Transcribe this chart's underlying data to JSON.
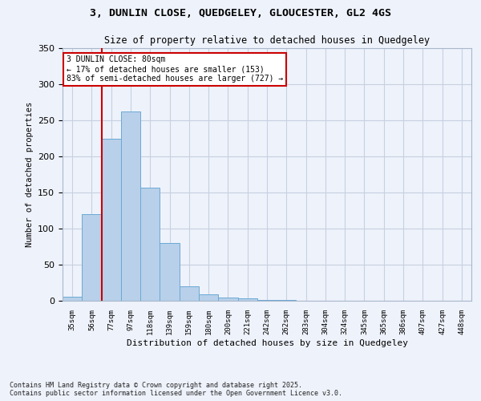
{
  "title1": "3, DUNLIN CLOSE, QUEDGELEY, GLOUCESTER, GL2 4GS",
  "title2": "Size of property relative to detached houses in Quedgeley",
  "xlabel": "Distribution of detached houses by size in Quedgeley",
  "ylabel": "Number of detached properties",
  "categories": [
    "35sqm",
    "56sqm",
    "77sqm",
    "97sqm",
    "118sqm",
    "139sqm",
    "159sqm",
    "180sqm",
    "200sqm",
    "221sqm",
    "242sqm",
    "262sqm",
    "283sqm",
    "304sqm",
    "324sqm",
    "345sqm",
    "365sqm",
    "386sqm",
    "407sqm",
    "427sqm",
    "448sqm"
  ],
  "values": [
    6,
    120,
    225,
    262,
    157,
    80,
    20,
    9,
    5,
    3,
    1,
    1,
    0,
    0,
    0,
    0,
    0,
    0,
    0,
    0,
    0
  ],
  "bar_color": "#b8d0ea",
  "bar_edge_color": "#6aaad4",
  "annotation_title": "3 DUNLIN CLOSE: 80sqm",
  "annotation_line1": "← 17% of detached houses are smaller (153)",
  "annotation_line2": "83% of semi-detached houses are larger (727) →",
  "ylim": [
    0,
    350
  ],
  "yticks": [
    0,
    50,
    100,
    150,
    200,
    250,
    300,
    350
  ],
  "footer1": "Contains HM Land Registry data © Crown copyright and database right 2025.",
  "footer2": "Contains public sector information licensed under the Open Government Licence v3.0.",
  "background_color": "#eef2fb",
  "grid_color": "#c8d0e0",
  "annotation_box_edge": "#cc0000",
  "vline_color": "#cc0000",
  "vline_x_idx": 2
}
